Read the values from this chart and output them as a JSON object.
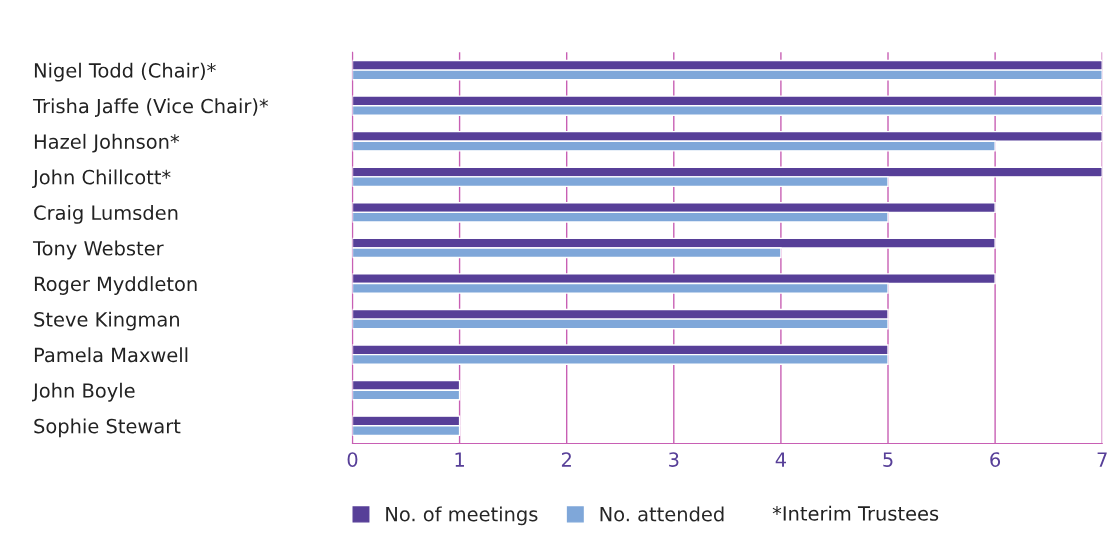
{
  "chart_data": {
    "type": "bar",
    "orientation": "horizontal",
    "categories": [
      "Nigel Todd (Chair)*",
      "Trisha Jaffe (Vice Chair)*",
      "Hazel Johnson*",
      "John Chillcott*",
      "Craig Lumsden",
      "Tony Webster",
      "Roger Myddleton",
      "Steve Kingman",
      "Pamela Maxwell",
      "John Boyle",
      "Sophie Stewart"
    ],
    "series": [
      {
        "name": "No. of meetings",
        "color": "#573f98",
        "values": [
          7,
          7,
          7,
          7,
          6,
          6,
          6,
          5,
          5,
          1,
          1
        ]
      },
      {
        "name": "No. attended",
        "color": "#7fa7d9",
        "values": [
          7,
          7,
          6,
          5,
          5,
          4,
          5,
          5,
          5,
          1,
          1
        ]
      }
    ],
    "xlim": [
      0,
      7
    ],
    "xticks": [
      0,
      1,
      2,
      3,
      4,
      5,
      6,
      7
    ],
    "grid": "x",
    "legend": "bottom",
    "annotations": [
      "*Interim Trustees"
    ]
  }
}
